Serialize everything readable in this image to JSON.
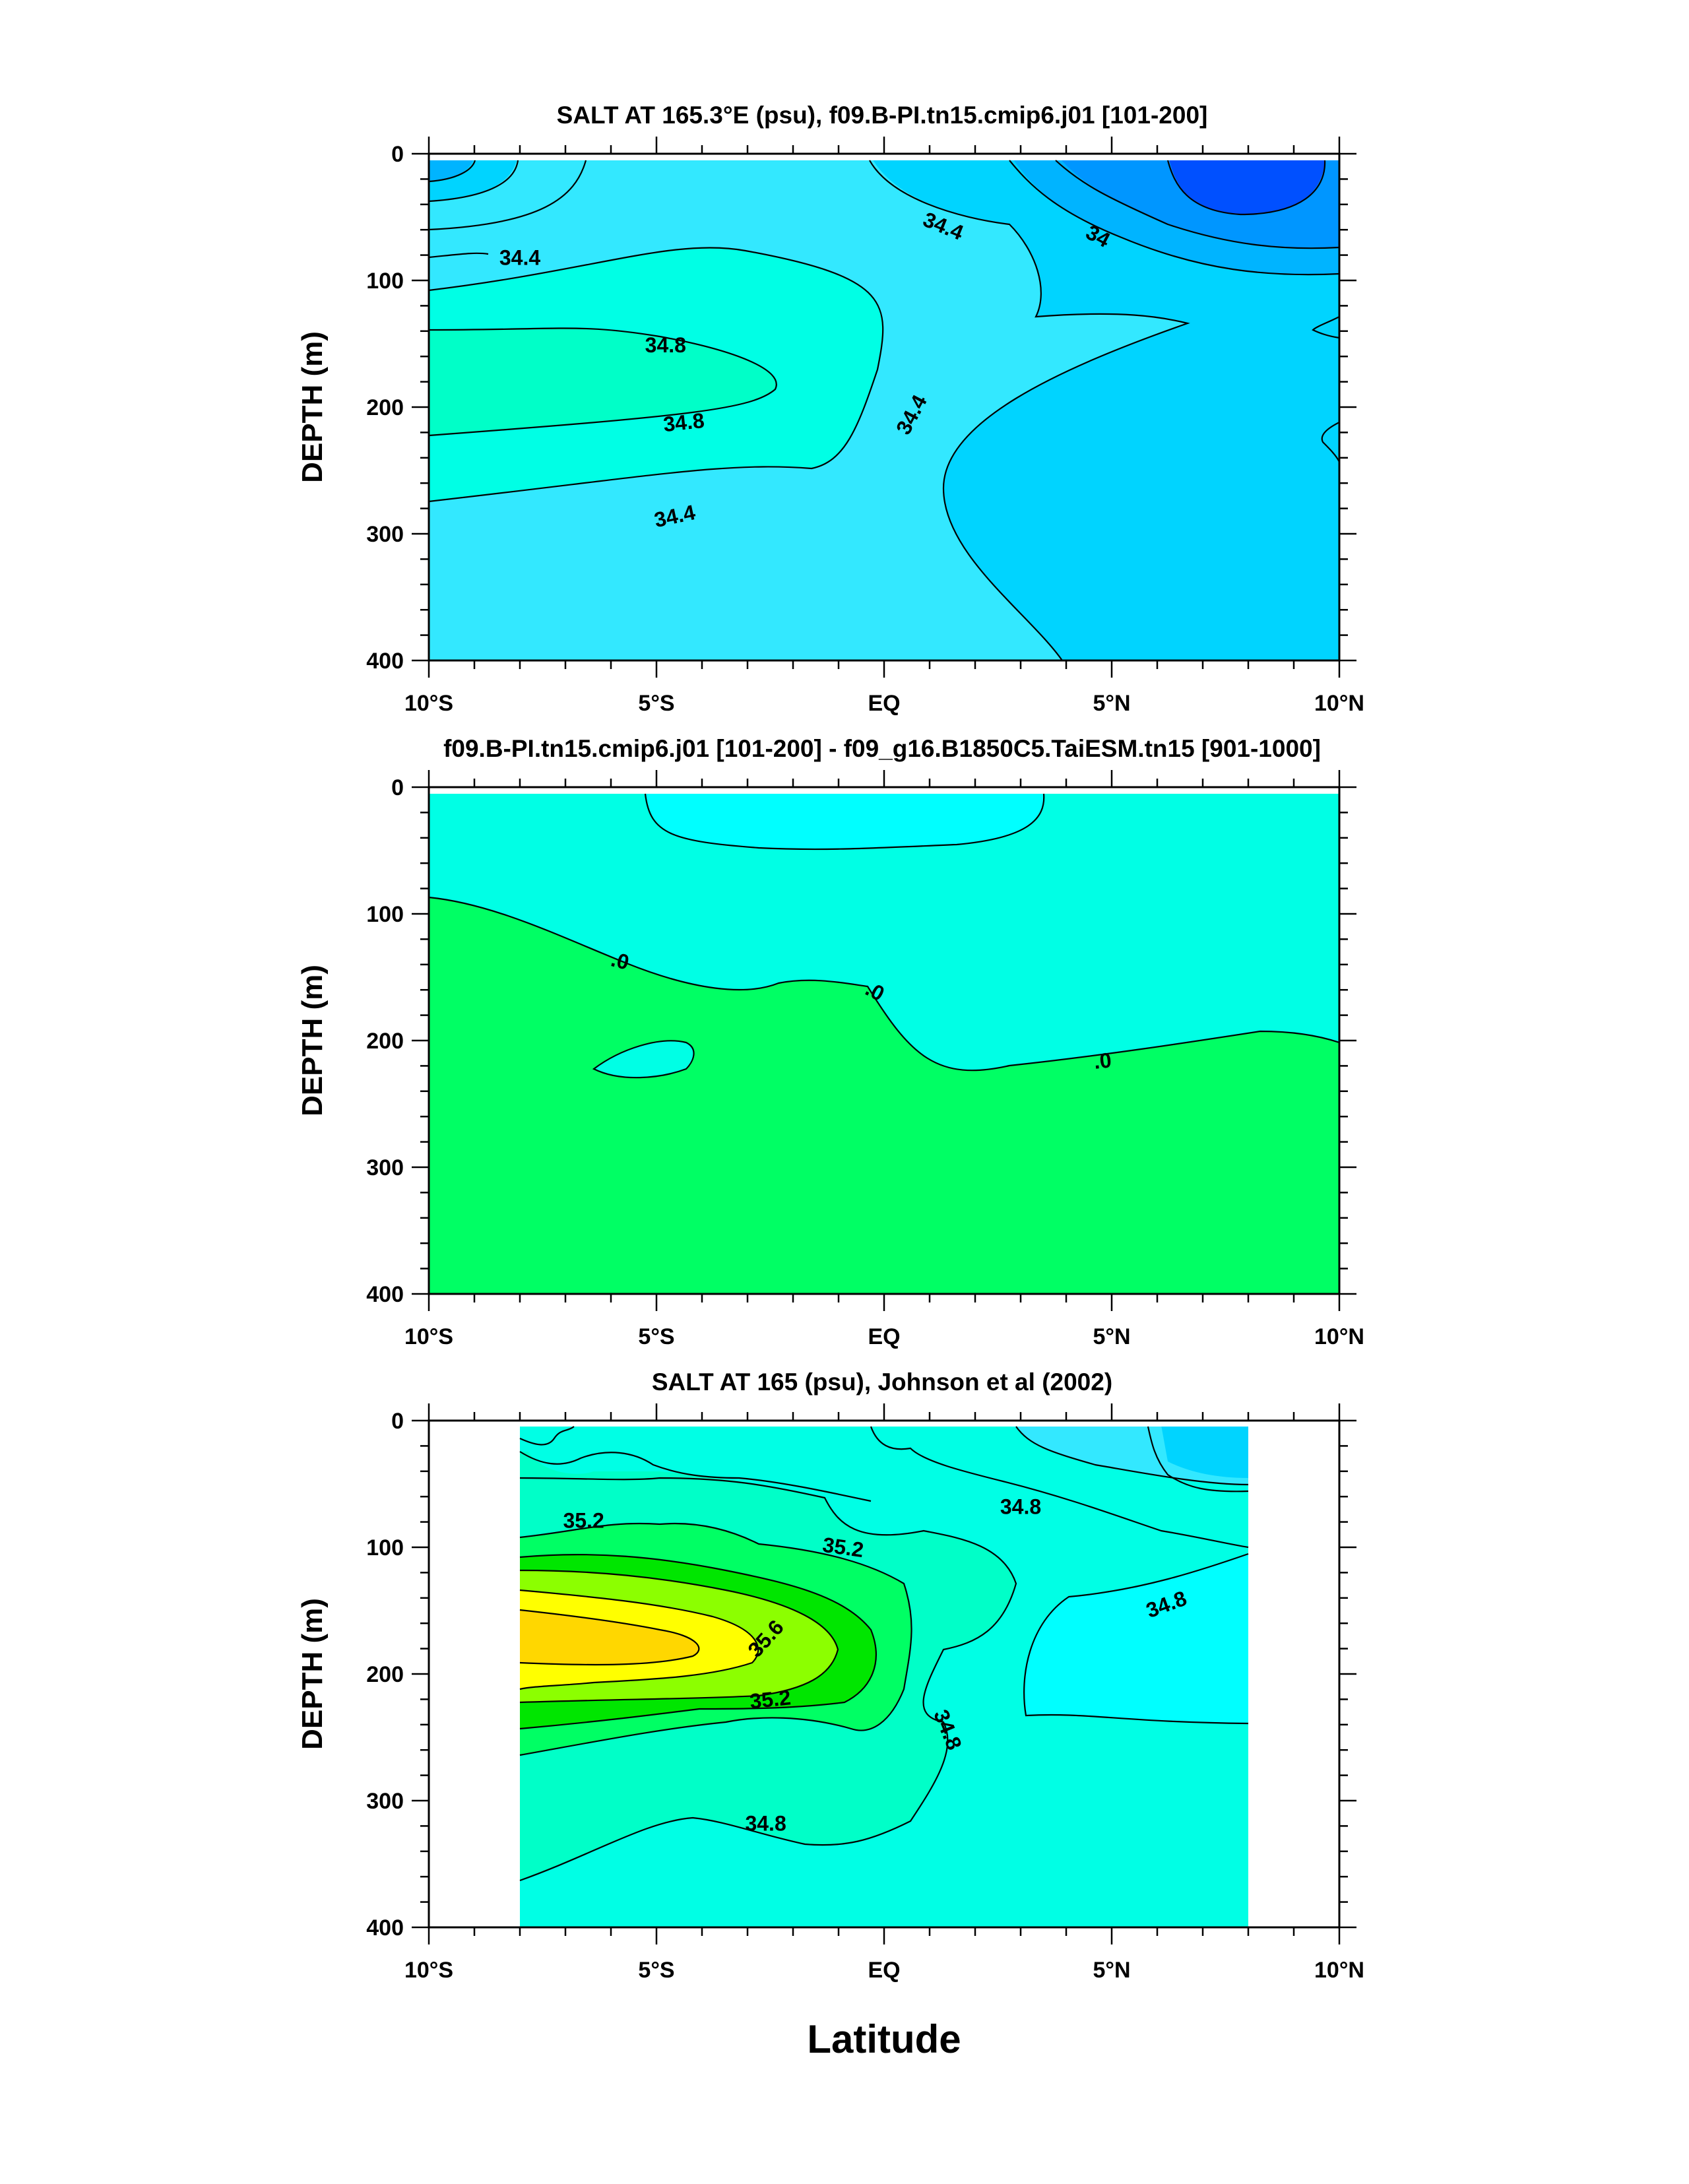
{
  "chart_data": [
    {
      "type": "contour",
      "title": "SALT AT 165.3°E (psu), f09.B-PI.tn15.cmip6.j01 [101-200]",
      "ylabel": "DEPTH (m)",
      "yticks": [
        "0",
        "100",
        "200",
        "300",
        "400"
      ],
      "xticks": [
        "10°S",
        "5°S",
        "EQ",
        "5°N",
        "10°N"
      ],
      "xlim": [
        -10,
        10
      ],
      "ylim": [
        400,
        0
      ],
      "contour_labels": [
        {
          "text": "34.4",
          "lat": -8.0,
          "depth": 82,
          "angle": 0
        },
        {
          "text": "34.8",
          "lat": -4.8,
          "depth": 151,
          "angle": 0
        },
        {
          "text": "34.8",
          "lat": -4.4,
          "depth": 212,
          "angle": -6
        },
        {
          "text": "34.4",
          "lat": -4.6,
          "depth": 286,
          "angle": -12
        },
        {
          "text": "34.4",
          "lat": 1.3,
          "depth": 57,
          "angle": 22
        },
        {
          "text": "34.4",
          "lat": 0.6,
          "depth": 206,
          "angle": -62
        },
        {
          "text": "34",
          "lat": 4.7,
          "depth": 65,
          "angle": 28
        }
      ]
    },
    {
      "type": "contour",
      "title": "f09.B-PI.tn15.cmip6.j01 [101-200] - f09_g16.B1850C5.TaiESM.tn15 [901-1000]",
      "ylabel": "DEPTH (m)",
      "yticks": [
        "0",
        "100",
        "200",
        "300",
        "400"
      ],
      "xticks": [
        "10°S",
        "5°S",
        "EQ",
        "5°N",
        "10°N"
      ],
      "xlim": [
        -10,
        10
      ],
      "ylim": [
        400,
        0
      ],
      "contour_labels": [
        {
          "text": ".0",
          "lat": -5.8,
          "depth": 137,
          "angle": 14
        },
        {
          "text": ".0",
          "lat": -0.2,
          "depth": 161,
          "angle": 28
        },
        {
          "text": ".0",
          "lat": 4.8,
          "depth": 216,
          "angle": -6
        }
      ]
    },
    {
      "type": "contour",
      "title": "SALT AT 165 (psu), Johnson et al (2002)",
      "ylabel": "DEPTH (m)",
      "yticks": [
        "0",
        "100",
        "200",
        "300",
        "400"
      ],
      "xticks": [
        "10°S",
        "5°S",
        "EQ",
        "5°N",
        "10°N"
      ],
      "xlim": [
        -10,
        10
      ],
      "ylim": [
        400,
        0
      ],
      "xlabel": "Latitude",
      "contour_labels": [
        {
          "text": "35.2",
          "lat": -6.6,
          "depth": 79,
          "angle": 0
        },
        {
          "text": "35.2",
          "lat": -0.9,
          "depth": 100,
          "angle": 8
        },
        {
          "text": "35.6",
          "lat": -2.6,
          "depth": 172,
          "angle": -48
        },
        {
          "text": "35.2",
          "lat": -2.5,
          "depth": 220,
          "angle": -6
        },
        {
          "text": "34.8",
          "lat": 3.0,
          "depth": 68,
          "angle": 0
        },
        {
          "text": "34.8",
          "lat": 6.2,
          "depth": 145,
          "angle": -20
        },
        {
          "text": "34.8",
          "lat": 1.4,
          "depth": 244,
          "angle": 68
        },
        {
          "text": "34.8",
          "lat": -2.6,
          "depth": 318,
          "angle": 0
        }
      ]
    }
  ]
}
